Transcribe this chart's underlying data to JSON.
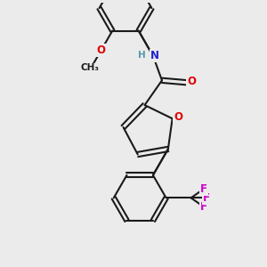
{
  "bg_color": "#ebebeb",
  "bond_color": "#1a1a1a",
  "bond_width": 1.5,
  "atom_colors": {
    "O": "#dd0000",
    "N": "#2222cc",
    "H": "#5599aa",
    "F": "#cc00cc",
    "C": "#1a1a1a"
  },
  "font_size": 8.5,
  "font_size_small": 7.5
}
